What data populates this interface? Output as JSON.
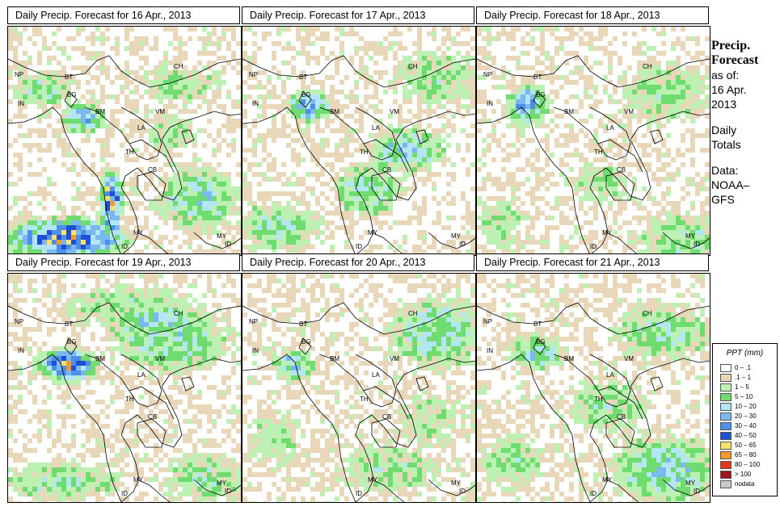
{
  "panels": [
    {
      "title": "Daily Precip. Forecast for  16 Apr., 2013"
    },
    {
      "title": "Daily Precip. Forecast for  17 Apr., 2013"
    },
    {
      "title": "Daily Precip. Forecast for  18 Apr., 2013"
    },
    {
      "title": "Daily Precip. Forecast for  19 Apr., 2013"
    },
    {
      "title": "Daily Precip. Forecast for  20 Apr., 2013"
    },
    {
      "title": "Daily Precip. Forecast for  21 Apr., 2013"
    }
  ],
  "country_labels": [
    "NP",
    "BT",
    "IN",
    "BG",
    "BM",
    "CH",
    "VM",
    "LA",
    "TH",
    "CB",
    "MY",
    "ID"
  ],
  "sidebar": {
    "heading1": "Precip.",
    "heading2": "Forecast",
    "asof": "as of:",
    "date1": "16 Apr.",
    "date2": "2013",
    "daily1": "Daily",
    "daily2": "Totals",
    "data1": "Data:",
    "data2": "NOAA–",
    "data3": "GFS"
  },
  "legend": {
    "title": "PPT (mm)",
    "items": [
      {
        "label": "0 – .1",
        "color": "#ffffff"
      },
      {
        "label": ".1 – 1",
        "color": "#e8d7b9"
      },
      {
        "label": "1 – 5",
        "color": "#bdf0b3"
      },
      {
        "label": "5 – 10",
        "color": "#6fdc6f"
      },
      {
        "label": "10 – 20",
        "color": "#b3e6f5"
      },
      {
        "label": "20 – 30",
        "color": "#7ab8f0"
      },
      {
        "label": "30 – 40",
        "color": "#4d8ee8"
      },
      {
        "label": "40 – 50",
        "color": "#1f4fd6"
      },
      {
        "label": "50 – 65",
        "color": "#f7e36b"
      },
      {
        "label": "65 – 80",
        "color": "#f59b2b"
      },
      {
        "label": "80 – 100",
        "color": "#e03a1e"
      },
      {
        "label": "> 100",
        "color": "#a0141e"
      },
      {
        "label": "nodata",
        "color": "#c8c8c8"
      }
    ]
  }
}
